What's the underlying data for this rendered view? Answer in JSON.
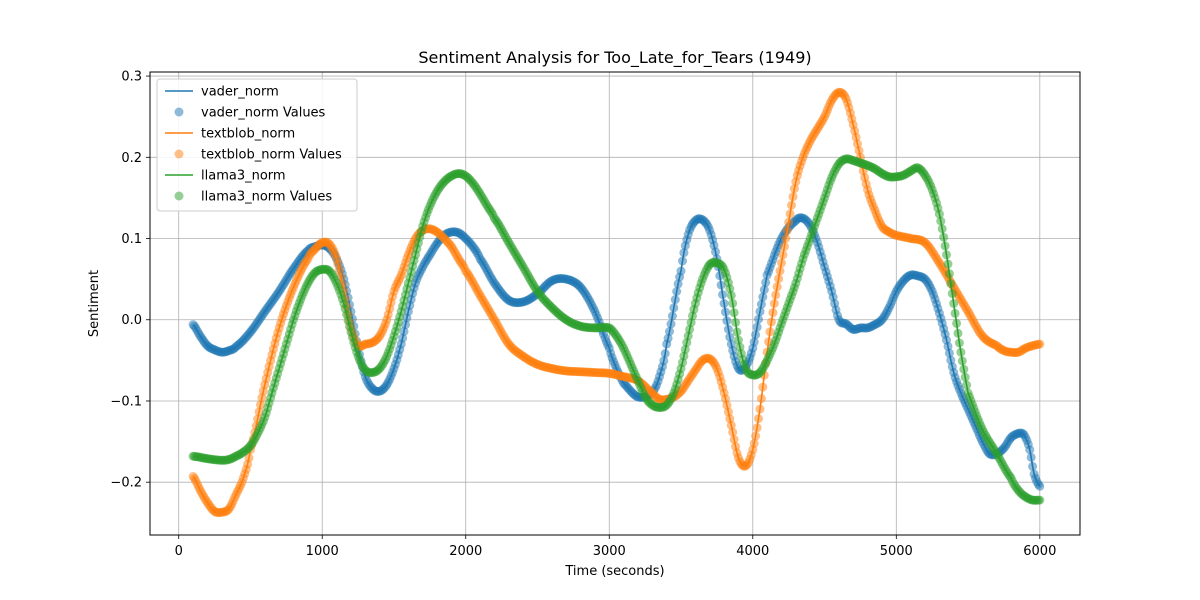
{
  "chart_data": {
    "type": "line",
    "title": "Sentiment Analysis for Too_Late_for_Tears (1949)",
    "xlabel": "Time (seconds)",
    "ylabel": "Sentiment",
    "xlim": [
      -200,
      6280
    ],
    "ylim": [
      -0.265,
      0.305
    ],
    "x_ticks": [
      0,
      1000,
      2000,
      3000,
      4000,
      5000,
      6000
    ],
    "x_tick_labels": [
      "0",
      "1000",
      "2000",
      "3000",
      "4000",
      "5000",
      "6000"
    ],
    "y_ticks": [
      -0.2,
      -0.1,
      0.0,
      0.1,
      0.2,
      0.3
    ],
    "y_tick_labels": [
      "−0.2",
      "−0.1",
      "0.0",
      "0.1",
      "0.2",
      "0.3"
    ],
    "grid": true,
    "legend_position": "top-left",
    "legend": [
      "vader_norm",
      "vader_norm Values",
      "textblob_norm",
      "textblob_norm Values",
      "llama3_norm",
      "llama3_norm Values"
    ],
    "series": [
      {
        "name": "vader_norm",
        "color": "#1f77b4",
        "x": [
          100,
          150,
          200,
          250,
          300,
          350,
          400,
          500,
          600,
          700,
          800,
          900,
          950,
          1000,
          1050,
          1100,
          1150,
          1200,
          1250,
          1300,
          1350,
          1400,
          1450,
          1500,
          1550,
          1600,
          1650,
          1700,
          1750,
          1800,
          1850,
          1900,
          1950,
          2000,
          2050,
          2100,
          2200,
          2300,
          2400,
          2500,
          2600,
          2700,
          2800,
          2900,
          3000,
          3050,
          3100,
          3200,
          3300,
          3350,
          3400,
          3500,
          3550,
          3600,
          3650,
          3700,
          3750,
          3800,
          3850,
          3900,
          3950,
          4000,
          4050,
          4100,
          4200,
          4300,
          4350,
          4400,
          4450,
          4500,
          4550,
          4600,
          4650,
          4700,
          4750,
          4800,
          4850,
          4900,
          4950,
          5000,
          5050,
          5100,
          5150,
          5200,
          5250,
          5300,
          5350,
          5400,
          5450,
          5500,
          5550,
          5600,
          5650,
          5700,
          5750,
          5800,
          5850,
          5880,
          5900,
          5930,
          5960,
          6000
        ],
        "values": [
          -0.006,
          -0.02,
          -0.032,
          -0.037,
          -0.04,
          -0.038,
          -0.033,
          -0.015,
          0.01,
          0.035,
          0.063,
          0.085,
          0.09,
          0.092,
          0.088,
          0.075,
          0.05,
          0.01,
          -0.035,
          -0.07,
          -0.085,
          -0.088,
          -0.08,
          -0.06,
          -0.03,
          0.01,
          0.045,
          0.065,
          0.08,
          0.094,
          0.104,
          0.108,
          0.107,
          0.1,
          0.09,
          0.075,
          0.045,
          0.024,
          0.022,
          0.032,
          0.048,
          0.05,
          0.04,
          0.01,
          -0.035,
          -0.06,
          -0.078,
          -0.095,
          -0.09,
          -0.07,
          -0.03,
          0.06,
          0.105,
          0.122,
          0.123,
          0.11,
          0.075,
          0.02,
          -0.03,
          -0.06,
          -0.058,
          -0.035,
          0.01,
          0.055,
          0.1,
          0.122,
          0.125,
          0.116,
          0.095,
          0.065,
          0.035,
          0.0,
          -0.005,
          -0.012,
          -0.01,
          -0.01,
          -0.006,
          0.0,
          0.015,
          0.035,
          0.048,
          0.055,
          0.054,
          0.05,
          0.035,
          0.008,
          -0.025,
          -0.065,
          -0.09,
          -0.11,
          -0.13,
          -0.15,
          -0.165,
          -0.165,
          -0.158,
          -0.145,
          -0.14,
          -0.14,
          -0.145,
          -0.16,
          -0.19,
          -0.205
        ]
      },
      {
        "name": "textblob_norm",
        "color": "#ff7f0e",
        "x": [
          100,
          150,
          200,
          250,
          300,
          350,
          400,
          450,
          500,
          600,
          700,
          800,
          900,
          950,
          1000,
          1050,
          1100,
          1150,
          1200,
          1250,
          1300,
          1350,
          1400,
          1450,
          1500,
          1550,
          1600,
          1650,
          1700,
          1750,
          1800,
          1850,
          1900,
          1950,
          2000,
          2100,
          2200,
          2300,
          2400,
          2500,
          2600,
          2700,
          2800,
          2900,
          3000,
          3100,
          3200,
          3300,
          3350,
          3400,
          3450,
          3500,
          3550,
          3600,
          3650,
          3700,
          3750,
          3800,
          3850,
          3900,
          3950,
          4000,
          4050,
          4100,
          4150,
          4200,
          4250,
          4300,
          4350,
          4400,
          4450,
          4500,
          4550,
          4600,
          4650,
          4700,
          4750,
          4800,
          4850,
          4900,
          4950,
          5000,
          5050,
          5100,
          5200,
          5300,
          5400,
          5500,
          5600,
          5700,
          5750,
          5800,
          5850,
          5900,
          5950,
          6000
        ],
        "values": [
          -0.193,
          -0.21,
          -0.225,
          -0.236,
          -0.237,
          -0.233,
          -0.215,
          -0.195,
          -0.16,
          -0.08,
          -0.01,
          0.04,
          0.075,
          0.087,
          0.095,
          0.093,
          0.075,
          0.035,
          -0.01,
          -0.032,
          -0.03,
          -0.028,
          -0.02,
          0.0,
          0.035,
          0.055,
          0.08,
          0.1,
          0.11,
          0.112,
          0.108,
          0.1,
          0.09,
          0.075,
          0.06,
          0.03,
          0.0,
          -0.03,
          -0.045,
          -0.055,
          -0.06,
          -0.063,
          -0.064,
          -0.065,
          -0.066,
          -0.07,
          -0.075,
          -0.09,
          -0.098,
          -0.098,
          -0.095,
          -0.088,
          -0.075,
          -0.062,
          -0.05,
          -0.048,
          -0.06,
          -0.09,
          -0.13,
          -0.17,
          -0.18,
          -0.16,
          -0.11,
          -0.04,
          0.02,
          0.07,
          0.12,
          0.17,
          0.2,
          0.22,
          0.235,
          0.25,
          0.27,
          0.28,
          0.272,
          0.24,
          0.2,
          0.16,
          0.135,
          0.115,
          0.108,
          0.104,
          0.102,
          0.1,
          0.095,
          0.07,
          0.04,
          0.01,
          -0.02,
          -0.032,
          -0.038,
          -0.04,
          -0.04,
          -0.035,
          -0.032,
          -0.03
        ]
      },
      {
        "name": "llama3_norm",
        "color": "#2ca02c",
        "x": [
          100,
          200,
          300,
          350,
          400,
          450,
          500,
          550,
          600,
          650,
          700,
          750,
          800,
          850,
          900,
          950,
          1000,
          1050,
          1100,
          1150,
          1200,
          1250,
          1300,
          1350,
          1400,
          1450,
          1500,
          1550,
          1600,
          1650,
          1700,
          1750,
          1800,
          1850,
          1900,
          1950,
          2000,
          2050,
          2100,
          2150,
          2200,
          2300,
          2400,
          2500,
          2600,
          2700,
          2800,
          2900,
          3000,
          3050,
          3100,
          3150,
          3200,
          3250,
          3300,
          3350,
          3400,
          3450,
          3500,
          3550,
          3600,
          3650,
          3700,
          3750,
          3800,
          3850,
          3900,
          3950,
          4000,
          4050,
          4100,
          4150,
          4200,
          4250,
          4300,
          4350,
          4400,
          4450,
          4500,
          4550,
          4600,
          4650,
          4700,
          4750,
          4800,
          4850,
          4900,
          4950,
          5000,
          5050,
          5100,
          5150,
          5200,
          5250,
          5300,
          5350,
          5400,
          5450,
          5500,
          5600,
          5700,
          5800,
          5850,
          5900,
          5950,
          6000
        ],
        "values": [
          -0.168,
          -0.171,
          -0.173,
          -0.172,
          -0.168,
          -0.163,
          -0.155,
          -0.14,
          -0.12,
          -0.09,
          -0.06,
          -0.03,
          0.0,
          0.025,
          0.045,
          0.058,
          0.062,
          0.06,
          0.045,
          0.02,
          -0.015,
          -0.045,
          -0.062,
          -0.065,
          -0.06,
          -0.045,
          -0.02,
          0.01,
          0.045,
          0.08,
          0.115,
          0.14,
          0.158,
          0.17,
          0.177,
          0.18,
          0.177,
          0.168,
          0.155,
          0.14,
          0.125,
          0.095,
          0.065,
          0.035,
          0.015,
          0.0,
          -0.008,
          -0.01,
          -0.01,
          -0.02,
          -0.035,
          -0.055,
          -0.075,
          -0.095,
          -0.105,
          -0.108,
          -0.105,
          -0.09,
          -0.06,
          -0.02,
          0.02,
          0.05,
          0.068,
          0.07,
          0.062,
          0.03,
          -0.025,
          -0.06,
          -0.068,
          -0.065,
          -0.05,
          -0.03,
          -0.005,
          0.02,
          0.045,
          0.075,
          0.1,
          0.125,
          0.15,
          0.175,
          0.192,
          0.198,
          0.196,
          0.193,
          0.19,
          0.186,
          0.18,
          0.176,
          0.176,
          0.178,
          0.183,
          0.187,
          0.178,
          0.16,
          0.13,
          0.08,
          0.02,
          -0.04,
          -0.09,
          -0.135,
          -0.165,
          -0.195,
          -0.21,
          -0.218,
          -0.222,
          -0.222
        ]
      }
    ]
  }
}
